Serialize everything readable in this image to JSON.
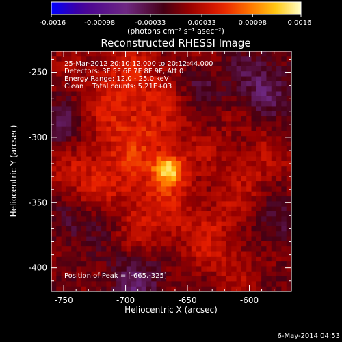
{
  "chart_data": {
    "type": "heatmap",
    "title": "Reconstructed RHESSI Image",
    "xlabel": "Heliocentric X (arcsec)",
    "ylabel": "Heliocentric Y (arcsec)",
    "xlim": [
      -760,
      -566
    ],
    "ylim": [
      -418,
      -234
    ],
    "x_ticks": [
      -750,
      -700,
      -650,
      -600
    ],
    "y_ticks": [
      -250,
      -300,
      -350,
      -400
    ],
    "colorbar": {
      "vmin": -0.0016,
      "vmax": 0.0016,
      "tick_values": [
        -0.0016,
        -0.00098,
        -0.00033,
        0.00033,
        0.00098,
        0.0016
      ],
      "tick_labels": [
        "-0.0016",
        "-0.00098",
        "-0.00033",
        "0.00033",
        "0.00098",
        "0.0016"
      ],
      "units_label": "(photons cm⁻² s⁻¹ asec⁻²)"
    },
    "annotations": [
      "25-Mar-2012 20:10:12.000 to 20:12:44.000",
      "Detectors: 3F 5F 6F 7F 8F 9F, Att 0",
      "Energy Range: 12.0 - 25.0 keV",
      "Clean    Total counts: 5.21E+03"
    ],
    "peak_label": "Position of Peak = [-665,-325]",
    "peak": [
      -665,
      -325
    ],
    "sources": [
      {
        "x": -665,
        "y": -325,
        "sigma": 8,
        "amp": 0.0011
      },
      {
        "x": -690,
        "y": -300,
        "sigma": 30,
        "amp": 0.00045
      },
      {
        "x": -700,
        "y": -255,
        "sigma": 22,
        "amp": 0.0003
      },
      {
        "x": -740,
        "y": -330,
        "sigma": 22,
        "amp": 0.00032
      },
      {
        "x": -600,
        "y": -320,
        "sigma": 20,
        "amp": 0.00025
      },
      {
        "x": -620,
        "y": -380,
        "sigma": 25,
        "amp": 0.0003
      },
      {
        "x": -680,
        "y": -360,
        "sigma": 25,
        "amp": 0.00035
      },
      {
        "x": -750,
        "y": -295,
        "sigma": 15,
        "amp": -0.0005
      },
      {
        "x": -690,
        "y": -410,
        "sigma": 20,
        "amp": -0.0005
      },
      {
        "x": -590,
        "y": -260,
        "sigma": 18,
        "amp": -0.0005
      },
      {
        "x": -640,
        "y": -260,
        "sigma": 12,
        "amp": -0.00035
      },
      {
        "x": -580,
        "y": -370,
        "sigma": 15,
        "amp": -0.00045
      },
      {
        "x": -745,
        "y": -365,
        "sigma": 15,
        "amp": -0.0004
      },
      {
        "x": -715,
        "y": -360,
        "sigma": 10,
        "amp": -0.0003
      }
    ]
  },
  "footer_date": "6-May-2014 04:53"
}
